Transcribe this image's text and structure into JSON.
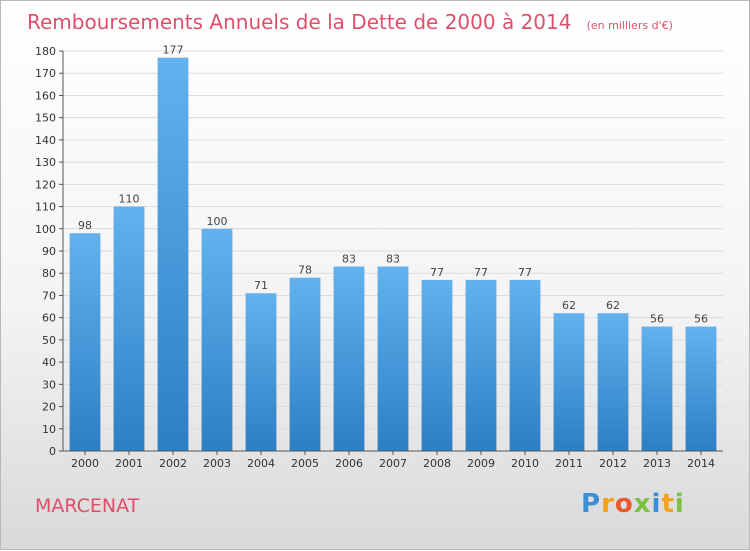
{
  "chart_data": {
    "type": "bar",
    "title": "Remboursements Annuels de la Dette de 2000 à 2014",
    "subtitle": "(en milliers d'€)",
    "categories": [
      "2000",
      "2001",
      "2002",
      "2003",
      "2004",
      "2005",
      "2006",
      "2007",
      "2008",
      "2009",
      "2010",
      "2011",
      "2012",
      "2013",
      "2014"
    ],
    "values": [
      98,
      110,
      177,
      100,
      71,
      78,
      83,
      83,
      77,
      77,
      77,
      62,
      62,
      56,
      56
    ],
    "ylim": [
      0,
      180
    ],
    "ytick_step": 10,
    "grid": true,
    "bar_color_top": "#62b2f0",
    "bar_color_bottom": "#2b7fc3"
  },
  "footer": {
    "place_name": "MARCENAT",
    "brand_letters": [
      {
        "ch": "P",
        "color": "#3a8fd6"
      },
      {
        "ch": "r",
        "color": "#f2a31b"
      },
      {
        "ch": "o",
        "color": "#e85a2c"
      },
      {
        "ch": "x",
        "color": "#7cc242"
      },
      {
        "ch": "i",
        "color": "#3a8fd6"
      },
      {
        "ch": "t",
        "color": "#f2a31b"
      },
      {
        "ch": "i",
        "color": "#7cc242"
      }
    ]
  }
}
